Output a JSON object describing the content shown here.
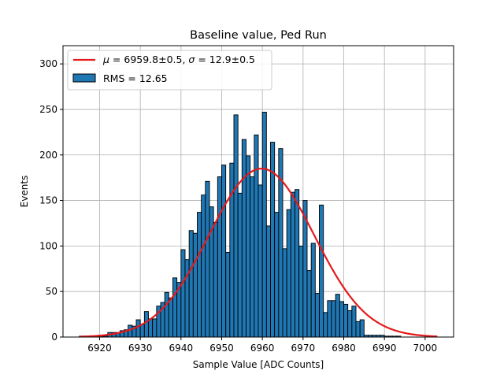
{
  "chart_data": {
    "type": "bar",
    "title": "Baseline value, Ped Run",
    "xlabel": "Sample Value [ADC Counts]",
    "ylabel": "Events",
    "xlim": [
      6911,
      7007
    ],
    "ylim": [
      0,
      320
    ],
    "xticks": [
      6920,
      6930,
      6940,
      6950,
      6960,
      6970,
      6980,
      6990,
      7000
    ],
    "yticks": [
      0,
      50,
      100,
      150,
      200,
      250,
      300
    ],
    "grid": true,
    "legend_position": "top-left",
    "bin_width": 1,
    "histogram": {
      "name": "RMS = 12.65",
      "color": "#1f77b4",
      "x": [
        6915,
        6916,
        6917,
        6918,
        6919,
        6920,
        6921,
        6922,
        6923,
        6924,
        6925,
        6926,
        6927,
        6928,
        6929,
        6930,
        6931,
        6932,
        6933,
        6934,
        6935,
        6936,
        6937,
        6938,
        6939,
        6940,
        6941,
        6942,
        6943,
        6944,
        6945,
        6946,
        6947,
        6948,
        6949,
        6950,
        6951,
        6952,
        6953,
        6954,
        6955,
        6956,
        6957,
        6958,
        6959,
        6960,
        6961,
        6962,
        6963,
        6964,
        6965,
        6966,
        6967,
        6968,
        6969,
        6970,
        6971,
        6972,
        6973,
        6974,
        6975,
        6976,
        6977,
        6978,
        6979,
        6980,
        6981,
        6982,
        6983,
        6984,
        6985,
        6986,
        6987,
        6988,
        6989,
        6990,
        6991,
        6992,
        6993,
        6994,
        6995,
        6996,
        6997,
        6998,
        6999,
        7000,
        7001,
        7002
      ],
      "values": [
        1,
        1,
        1,
        1,
        1,
        1,
        1,
        5,
        5,
        5,
        7,
        8,
        13,
        12,
        19,
        14,
        28,
        20,
        20,
        34,
        38,
        49,
        43,
        65,
        60,
        96,
        85,
        117,
        114,
        137,
        156,
        171,
        143,
        126,
        176,
        189,
        93,
        191,
        244,
        158,
        217,
        199,
        176,
        222,
        167,
        247,
        122,
        214,
        137,
        207,
        97,
        140,
        159,
        162,
        100,
        150,
        73,
        103,
        48,
        145,
        27,
        40,
        40,
        47,
        39,
        36,
        29,
        34,
        17,
        19,
        2,
        2,
        2,
        2,
        2,
        1,
        1,
        1,
        1,
        0,
        0,
        0,
        0,
        0,
        0,
        0,
        0,
        0
      ]
    },
    "fit": {
      "name": "μ = 6959.8±0.5, σ = 12.9±0.5",
      "color": "#e41a1c",
      "mu": 6959.8,
      "sigma": 12.9,
      "amplitude": 185,
      "x_range": [
        6915,
        7003
      ]
    },
    "legend": {
      "fit_mu": "6959.8±0.5",
      "fit_sigma": "12.9±0.5",
      "hist_label": "RMS = 12.65"
    }
  }
}
